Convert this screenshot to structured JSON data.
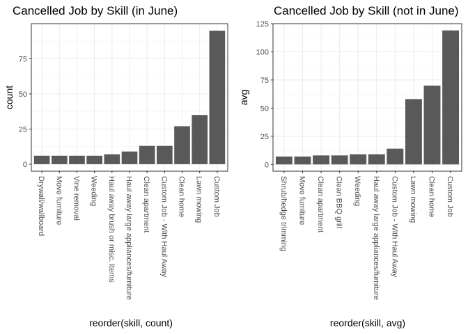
{
  "chart_data": [
    {
      "type": "bar",
      "title": "Cancelled Job by Skill (in June)",
      "xlabel": "reorder(skill, count)",
      "ylabel": "count",
      "categories": [
        "Drywall/wallboard",
        "Move furniture",
        "Vine removal",
        "Weeding",
        "Haul away brush or misc. items",
        "Haul away large appliances/furniture",
        "Clean apartment",
        "Custom Job - With Haul Away",
        "Clean home",
        "Lawn mowing",
        "Custom Job"
      ],
      "values": [
        6,
        6,
        6,
        6,
        7,
        9,
        13,
        13,
        27,
        35,
        95
      ],
      "ylim": [
        -5,
        100
      ],
      "yticks": [
        0,
        25,
        50,
        75
      ],
      "grid": true,
      "bar_color": "#595959"
    },
    {
      "type": "bar",
      "title": "Cancelled Job by Skill (not in June)",
      "xlabel": "reorder(skill, avg)",
      "ylabel": "avg",
      "categories": [
        "Shrub/hedge trimming",
        "Move furniture",
        "Clean apartment",
        "Clean BBQ grill",
        "Weeding",
        "Haul away large appliances/furniture",
        "Custom Job - With Haul Away",
        "Lawn mowing",
        "Clean home",
        "Custom Job"
      ],
      "values": [
        7,
        7,
        8,
        8,
        9,
        9,
        14,
        58,
        70,
        119
      ],
      "ylim": [
        -6,
        125
      ],
      "yticks": [
        0,
        25,
        50,
        75,
        100,
        125
      ],
      "grid": true,
      "bar_color": "#595959"
    }
  ]
}
